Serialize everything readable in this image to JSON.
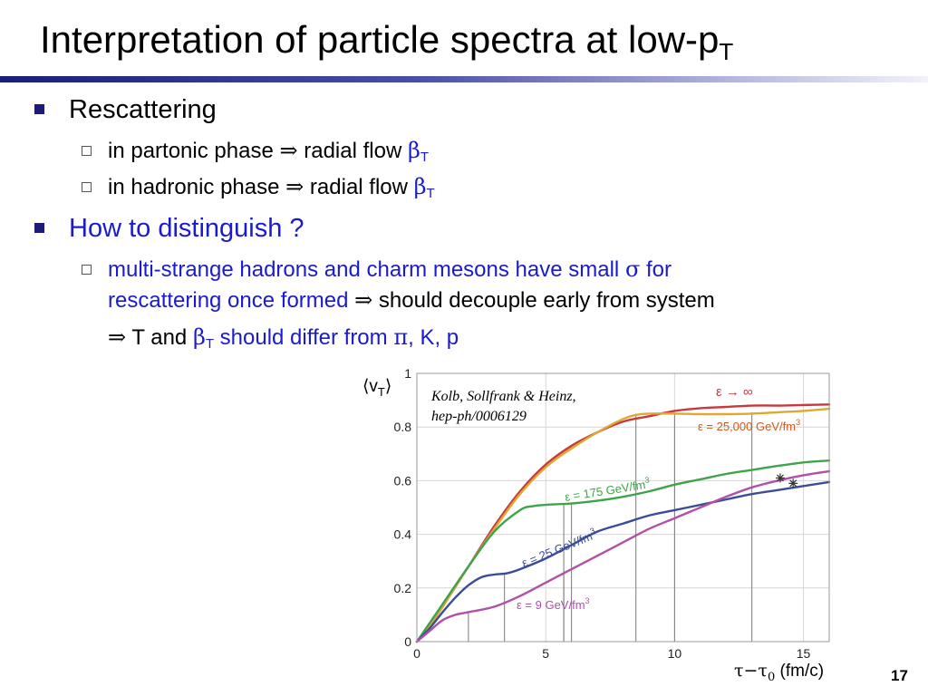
{
  "slide": {
    "title": "Interpretation of particle spectra at low-p",
    "title_sub": "T",
    "page_number": "17"
  },
  "bullets": {
    "b1": {
      "text": "Rescattering",
      "sub1": {
        "pre": "in partonic phase ",
        "arrow": "⇒",
        "mid": " radial flow ",
        "beta": "β",
        "sub": "T"
      },
      "sub2": {
        "pre": "in hadronic phase ",
        "arrow": "⇒",
        "mid": " radial flow ",
        "beta": "β",
        "sub": "T"
      }
    },
    "b2": {
      "text": "How to distinguish ?",
      "sub1": {
        "line1_pre": "multi-strange hadrons and charm mesons have small ",
        "sigma": "σ",
        "line1_post": " for",
        "line2_blue": "rescattering once formed ",
        "arrow": "⇒",
        "line2_black": " should decouple early from system",
        "line3_arrow": "⇒",
        "line3_a": " T and ",
        "beta": "β",
        "beta_sub": "T",
        "line3_b": " should differ from ",
        "pi": "π",
        "line3_c": ", K, p"
      }
    }
  },
  "figure": {
    "citation_line1": "Kolb, Sollfrank & Heinz,",
    "citation_line2": "hep-ph/0006129",
    "ylabel": "⟨v",
    "ylabel_sub": "T",
    "ylabel_end": "⟩",
    "xlabel_a": "τ−τ",
    "xlabel_sub": "0",
    "xlabel_b": " (fm/c)",
    "labels": {
      "inf": "ε → ∞",
      "e25000": "ε = 25,000 GeV/fm",
      "e175": "ε = 175 GeV/fm",
      "e25": "ε = 25 GeV/fm",
      "e9": "ε = 9 GeV/fm",
      "cube": "3"
    }
  },
  "chart_data": {
    "type": "line",
    "xlabel": "τ−τ0 (fm/c)",
    "ylabel": "⟨vT⟩",
    "xlim": [
      0,
      16
    ],
    "ylim": [
      0,
      1
    ],
    "x_ticks": [
      "0",
      "5",
      "10",
      "15"
    ],
    "y_ticks": [
      "0",
      "0.2",
      "0.4",
      "0.6",
      "0.8",
      "1"
    ],
    "grid": true,
    "series": [
      {
        "name": "ε → ∞",
        "color": "#c8383c",
        "x": [
          0,
          0.5,
          1,
          2,
          3,
          4,
          5,
          6,
          7,
          8,
          9,
          10,
          11,
          12,
          13,
          14,
          15,
          16
        ],
        "y": [
          0,
          0.06,
          0.13,
          0.28,
          0.43,
          0.56,
          0.66,
          0.73,
          0.78,
          0.82,
          0.84,
          0.86,
          0.87,
          0.875,
          0.88,
          0.88,
          0.882,
          0.884
        ]
      },
      {
        "name": "ε = 25,000 GeV/fm3",
        "color": "#e0a830",
        "x": [
          0,
          0.5,
          1,
          2,
          3,
          4,
          5,
          6,
          7,
          8,
          8.5,
          9,
          10,
          11,
          12,
          13,
          14,
          15,
          16
        ],
        "y": [
          0,
          0.06,
          0.13,
          0.28,
          0.42,
          0.55,
          0.65,
          0.72,
          0.78,
          0.83,
          0.845,
          0.85,
          0.85,
          0.848,
          0.848,
          0.85,
          0.855,
          0.86,
          0.868
        ]
      },
      {
        "name": "ε = 175 GeV/fm3",
        "color": "#3fa34a",
        "x": [
          0,
          0.5,
          1,
          2,
          3,
          4,
          4.5,
          5,
          6,
          7,
          8,
          9,
          10,
          11,
          12,
          13,
          14,
          15,
          16
        ],
        "y": [
          0,
          0.07,
          0.14,
          0.28,
          0.41,
          0.49,
          0.505,
          0.51,
          0.515,
          0.525,
          0.54,
          0.56,
          0.585,
          0.605,
          0.625,
          0.64,
          0.655,
          0.668,
          0.675
        ]
      },
      {
        "name": "ε = 25 GeV/fm3",
        "color": "#3a4c9a",
        "x": [
          0,
          0.5,
          1,
          1.5,
          2,
          2.5,
          3,
          3.5,
          4,
          5,
          6,
          7,
          8,
          9,
          10,
          11,
          12,
          13,
          14,
          15,
          16
        ],
        "y": [
          0,
          0.05,
          0.11,
          0.165,
          0.21,
          0.24,
          0.25,
          0.255,
          0.27,
          0.31,
          0.36,
          0.41,
          0.44,
          0.47,
          0.49,
          0.51,
          0.53,
          0.55,
          0.565,
          0.58,
          0.595
        ]
      },
      {
        "name": "ε = 9 GeV/fm3",
        "color": "#b050a8",
        "x": [
          0,
          0.5,
          1,
          1.5,
          2,
          3,
          4,
          5,
          6,
          7,
          8,
          9,
          10,
          11,
          12,
          13,
          14,
          15,
          16
        ],
        "y": [
          0,
          0.04,
          0.08,
          0.1,
          0.11,
          0.13,
          0.17,
          0.22,
          0.27,
          0.32,
          0.37,
          0.42,
          0.46,
          0.5,
          0.54,
          0.575,
          0.6,
          0.62,
          0.635
        ]
      }
    ],
    "markers": [
      {
        "x": 14.1,
        "y": 0.61
      },
      {
        "x": 14.6,
        "y": 0.59
      }
    ],
    "vertical_lines": [
      {
        "x": 2.0,
        "y": 0.11
      },
      {
        "x": 3.4,
        "y": 0.255
      },
      {
        "x": 5.7,
        "y": 0.265
      },
      {
        "x": 5.7,
        "y": 0.515
      },
      {
        "x": 6.0,
        "y": 0.515
      },
      {
        "x": 8.5,
        "y": 0.85
      },
      {
        "x": 10.0,
        "y": 0.85
      },
      {
        "x": 13.0,
        "y": 0.855
      }
    ]
  }
}
